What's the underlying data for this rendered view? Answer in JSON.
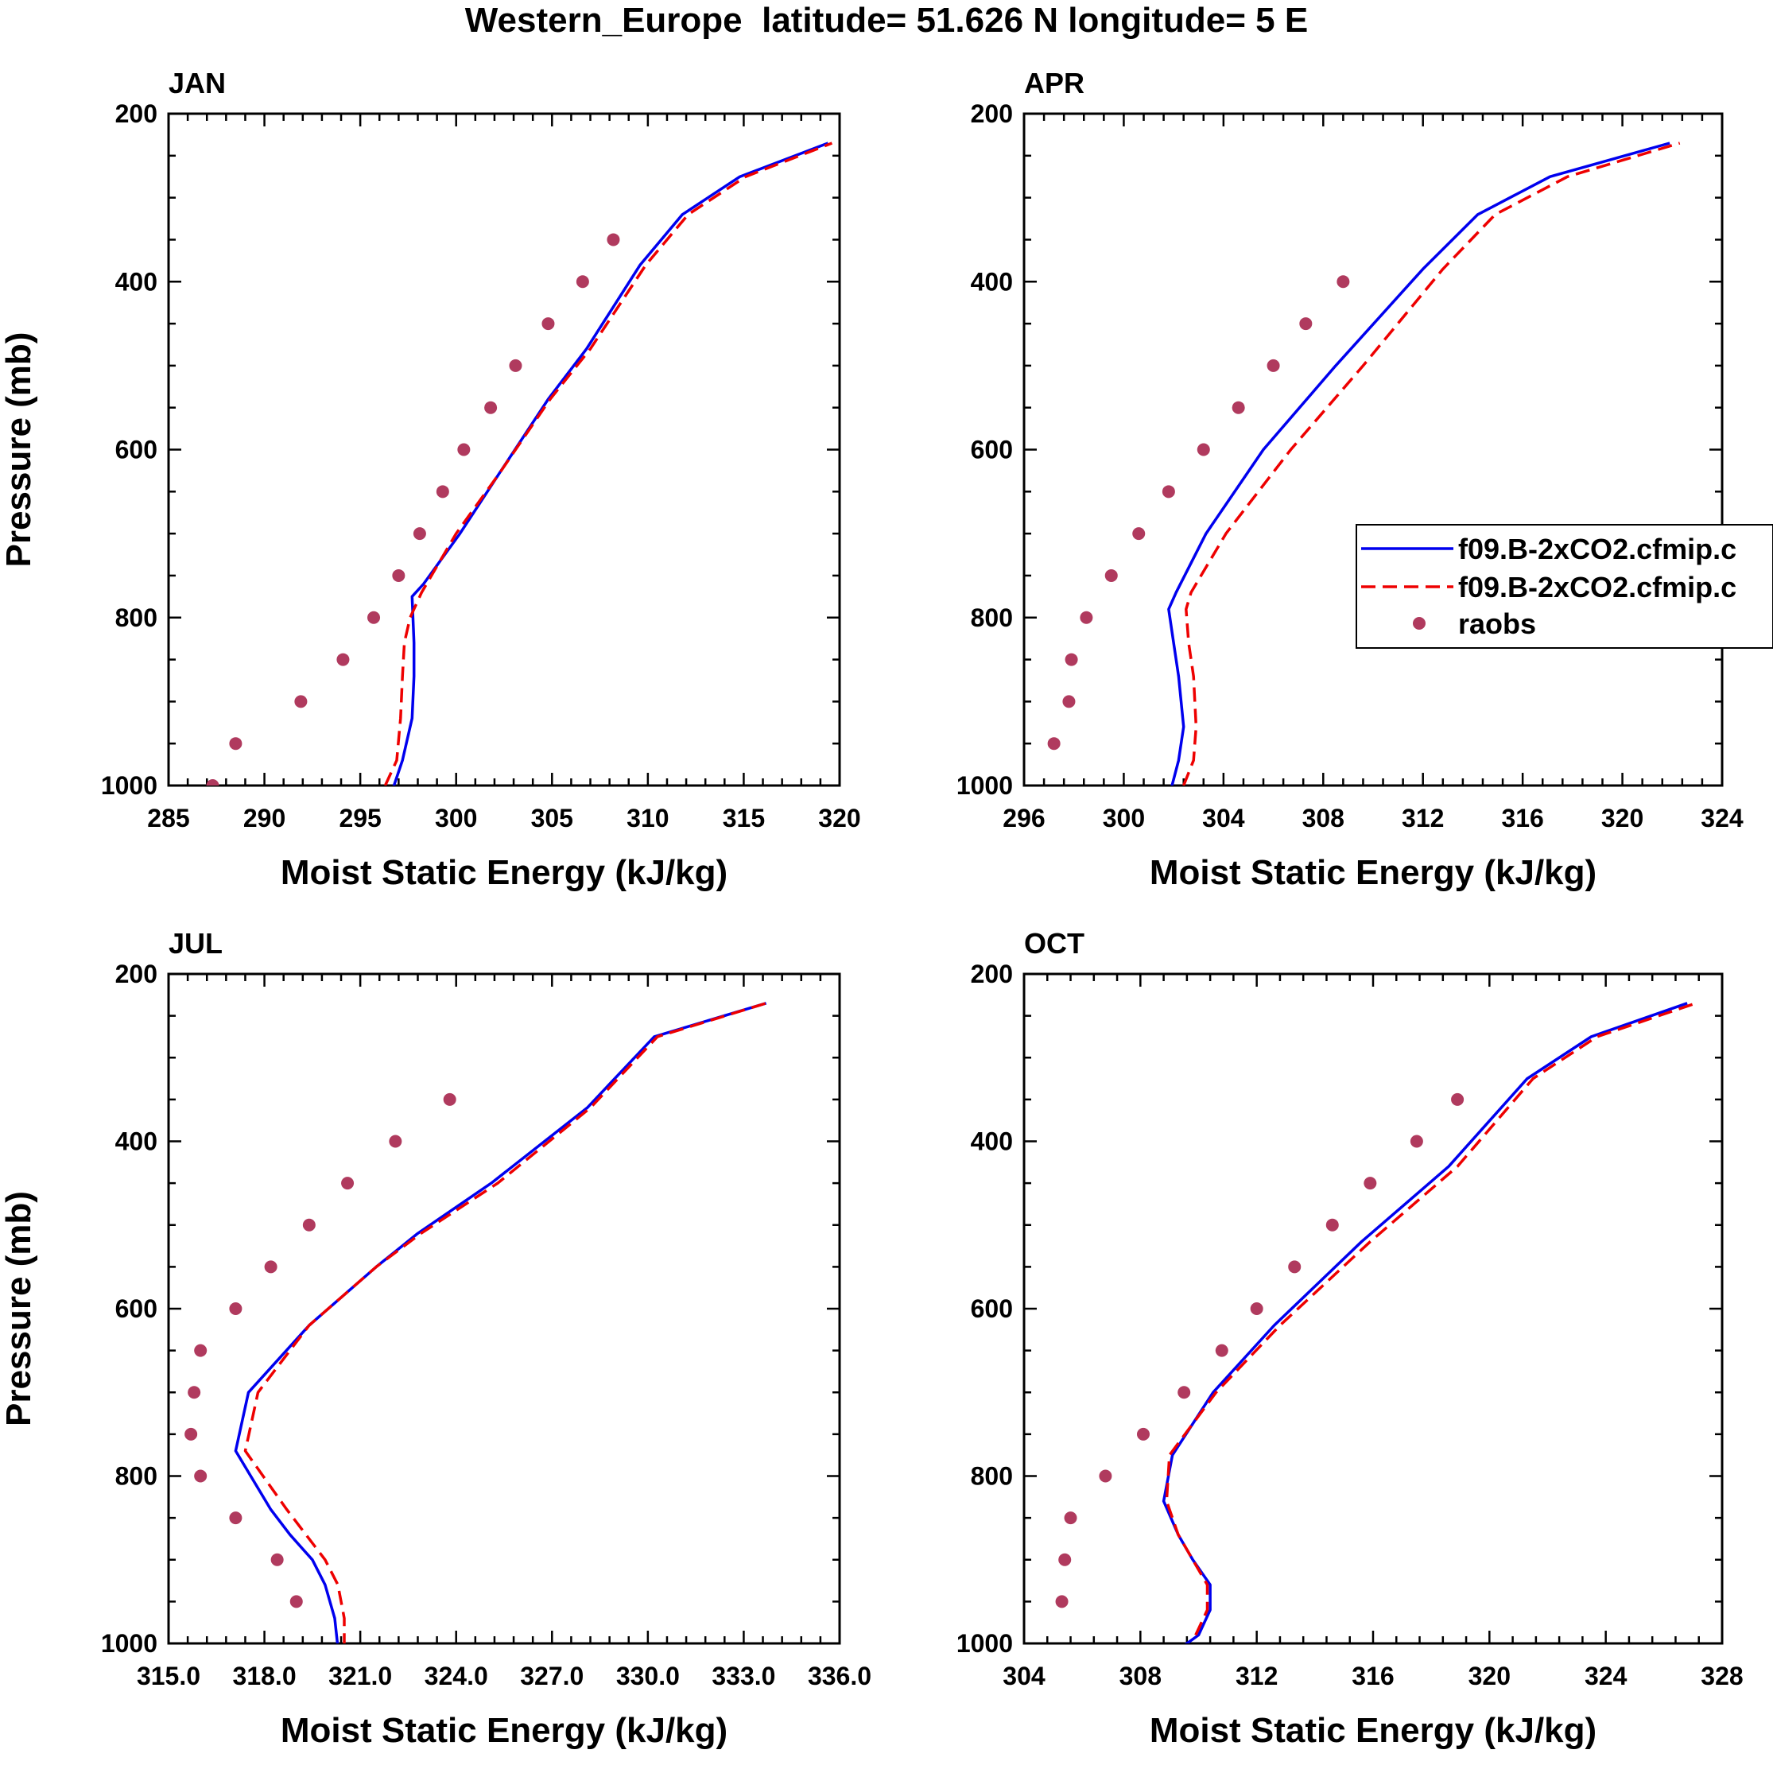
{
  "figure_title": "Western_Europe  latitude= 51.626 N longitude= 5 E",
  "legend": {
    "model1": "f09.B-2xCO2.cfmip.c",
    "model2": "f09.B-2xCO2.cfmip.c",
    "obs": "raobs"
  },
  "colors": {
    "model1": "#0000ee",
    "model2": "#ee0000",
    "obs": "#b03a5e"
  },
  "chart_data": [
    {
      "type": "line",
      "title": "JAN",
      "xlabel": "Moist Static Energy (kJ/kg)",
      "ylabel": "Pressure (mb)",
      "xlim": [
        285,
        320
      ],
      "ylim": [
        1000,
        200
      ],
      "xticks": [
        "285",
        "290",
        "295",
        "300",
        "305",
        "310",
        "315",
        "320"
      ],
      "xtick_values": [
        285,
        290,
        295,
        300,
        305,
        310,
        315,
        320
      ],
      "yticks": [
        "200",
        "400",
        "600",
        "800",
        "1000"
      ],
      "ytick_values": [
        200,
        400,
        600,
        800,
        1000
      ],
      "series": [
        {
          "name": "f09.B-2xCO2.cfmip.c",
          "style": "solid",
          "x": [
            296.7,
            297.2,
            297.7,
            297.8,
            297.8,
            297.7,
            298.3,
            300.2,
            302.2,
            304.8,
            306.8,
            309.6,
            311.8,
            314.8,
            319.4
          ],
          "y": [
            1004,
            970,
            920,
            870,
            830,
            775,
            760,
            700,
            630,
            540,
            480,
            380,
            320,
            275,
            235
          ]
        },
        {
          "name": "f09.B-2xCO2.cfmip.c",
          "style": "dashed",
          "x": [
            296.3,
            296.9,
            297.1,
            297.2,
            297.3,
            297.6,
            298.2,
            300.0,
            302.2,
            304.9,
            307.0,
            309.9,
            312.1,
            315.1,
            319.6
          ],
          "y": [
            1000,
            970,
            920,
            870,
            830,
            800,
            770,
            700,
            630,
            540,
            480,
            380,
            320,
            275,
            235
          ]
        },
        {
          "name": "raobs",
          "style": "markers",
          "x": [
            287.3,
            288.5,
            291.9,
            294.1,
            295.7,
            297.0,
            298.1,
            299.3,
            300.4,
            301.8,
            303.1,
            304.8,
            306.6,
            308.2
          ],
          "y": [
            1000,
            950,
            900,
            850,
            800,
            750,
            700,
            650,
            600,
            550,
            500,
            450,
            400,
            350
          ]
        }
      ]
    },
    {
      "type": "line",
      "title": "APR",
      "xlabel": "Moist Static Energy (kJ/kg)",
      "ylabel": "Pressure (mb)",
      "xlim": [
        296,
        324
      ],
      "ylim": [
        1000,
        200
      ],
      "xticks": [
        "296",
        "300",
        "304",
        "308",
        "312",
        "316",
        "320",
        "324"
      ],
      "xtick_values": [
        296,
        300,
        304,
        308,
        312,
        316,
        320,
        324
      ],
      "yticks": [
        "200",
        "400",
        "600",
        "800",
        "1000"
      ],
      "ytick_values": [
        200,
        400,
        600,
        800,
        1000
      ],
      "series": [
        {
          "name": "f09.B-2xCO2.cfmip.c",
          "style": "solid",
          "x": [
            301.9,
            302.2,
            302.4,
            302.2,
            302.0,
            301.8,
            302.1,
            303.3,
            305.6,
            308.5,
            312.0,
            314.2,
            317.1,
            321.9
          ],
          "y": [
            1004,
            970,
            930,
            870,
            830,
            790,
            770,
            700,
            600,
            500,
            385,
            320,
            275,
            235
          ]
        },
        {
          "name": "f09.B-2xCO2.cfmip.c",
          "style": "dashed",
          "x": [
            302.4,
            302.8,
            302.9,
            302.8,
            302.6,
            302.5,
            302.7,
            304.1,
            306.7,
            309.6,
            312.8,
            314.9,
            317.8,
            322.3
          ],
          "y": [
            1000,
            970,
            930,
            870,
            830,
            790,
            770,
            700,
            600,
            500,
            385,
            320,
            275,
            235
          ]
        },
        {
          "name": "raobs",
          "style": "markers",
          "x": [
            297.2,
            297.8,
            297.9,
            298.5,
            299.5,
            300.6,
            301.8,
            303.2,
            304.6,
            306.0,
            307.3,
            308.8
          ],
          "y": [
            950,
            900,
            850,
            800,
            750,
            700,
            650,
            600,
            550,
            500,
            450,
            400
          ]
        }
      ]
    },
    {
      "type": "line",
      "title": "JUL",
      "xlabel": "Moist Static Energy (kJ/kg)",
      "ylabel": "Pressure (mb)",
      "xlim": [
        315.0,
        336.0
      ],
      "ylim": [
        1000,
        200
      ],
      "xticks": [
        "315.0",
        "318.0",
        "321.0",
        "324.0",
        "327.0",
        "330.0",
        "333.0",
        "336.0"
      ],
      "xtick_values": [
        315,
        318,
        321,
        324,
        327,
        330,
        333,
        336
      ],
      "yticks": [
        "200",
        "400",
        "600",
        "800",
        "1000"
      ],
      "ytick_values": [
        200,
        400,
        600,
        800,
        1000
      ],
      "series": [
        {
          "name": "f09.B-2xCO2.cfmip.c",
          "style": "solid",
          "x": [
            320.3,
            320.2,
            319.9,
            319.5,
            318.8,
            318.2,
            317.1,
            317.5,
            319.4,
            321.5,
            322.8,
            325.1,
            328.1,
            330.2,
            333.7
          ],
          "y": [
            1005,
            970,
            930,
            900,
            870,
            840,
            770,
            700,
            620,
            550,
            510,
            450,
            360,
            275,
            235
          ]
        },
        {
          "name": "f09.B-2xCO2.cfmip.c",
          "style": "dashed",
          "x": [
            320.5,
            320.5,
            320.3,
            319.9,
            319.3,
            318.7,
            317.4,
            317.8,
            319.4,
            321.5,
            322.9,
            325.3,
            328.2,
            330.3,
            333.7
          ],
          "y": [
            1005,
            970,
            930,
            900,
            870,
            840,
            770,
            700,
            620,
            550,
            510,
            450,
            360,
            275,
            235
          ]
        },
        {
          "name": "raobs",
          "style": "markers",
          "x": [
            319.0,
            318.4,
            317.1,
            316.0,
            315.7,
            315.8,
            316.0,
            317.1,
            318.2,
            319.4,
            320.6,
            322.1,
            323.8
          ],
          "y": [
            950,
            900,
            850,
            800,
            750,
            700,
            650,
            600,
            550,
            500,
            450,
            400,
            350
          ]
        }
      ]
    },
    {
      "type": "line",
      "title": "OCT",
      "xlabel": "Moist Static Energy (kJ/kg)",
      "ylabel": "Pressure (mb)",
      "xlim": [
        304,
        328
      ],
      "ylim": [
        1000,
        200
      ],
      "xticks": [
        "304",
        "308",
        "312",
        "316",
        "320",
        "324",
        "328"
      ],
      "xtick_values": [
        304,
        308,
        312,
        316,
        320,
        324,
        328
      ],
      "yticks": [
        "200",
        "400",
        "600",
        "800",
        "1000"
      ],
      "ytick_values": [
        200,
        400,
        600,
        800,
        1000
      ],
      "series": [
        {
          "name": "f09.B-2xCO2.cfmip.c",
          "style": "solid",
          "x": [
            309.4,
            310.0,
            310.4,
            310.4,
            309.8,
            309.3,
            308.8,
            309.1,
            310.5,
            312.6,
            315.6,
            318.6,
            321.3,
            323.5,
            326.8
          ],
          "y": [
            1005,
            990,
            960,
            930,
            900,
            870,
            830,
            775,
            700,
            620,
            520,
            430,
            325,
            275,
            235
          ]
        },
        {
          "name": "f09.B-2xCO2.cfmip.c",
          "style": "dashed",
          "x": [
            309.9,
            310.3,
            310.3,
            309.8,
            309.3,
            308.9,
            309.0,
            310.6,
            312.8,
            315.9,
            318.9,
            321.5,
            323.7,
            327.1
          ],
          "y": [
            990,
            960,
            930,
            900,
            870,
            830,
            775,
            700,
            620,
            520,
            430,
            325,
            275,
            235
          ]
        },
        {
          "name": "raobs",
          "style": "markers",
          "x": [
            305.3,
            305.4,
            305.6,
            306.8,
            308.1,
            309.5,
            310.8,
            312.0,
            313.3,
            314.6,
            315.9,
            317.5,
            318.9
          ],
          "y": [
            950,
            900,
            850,
            800,
            750,
            700,
            650,
            600,
            550,
            500,
            450,
            400,
            350
          ]
        }
      ]
    }
  ]
}
